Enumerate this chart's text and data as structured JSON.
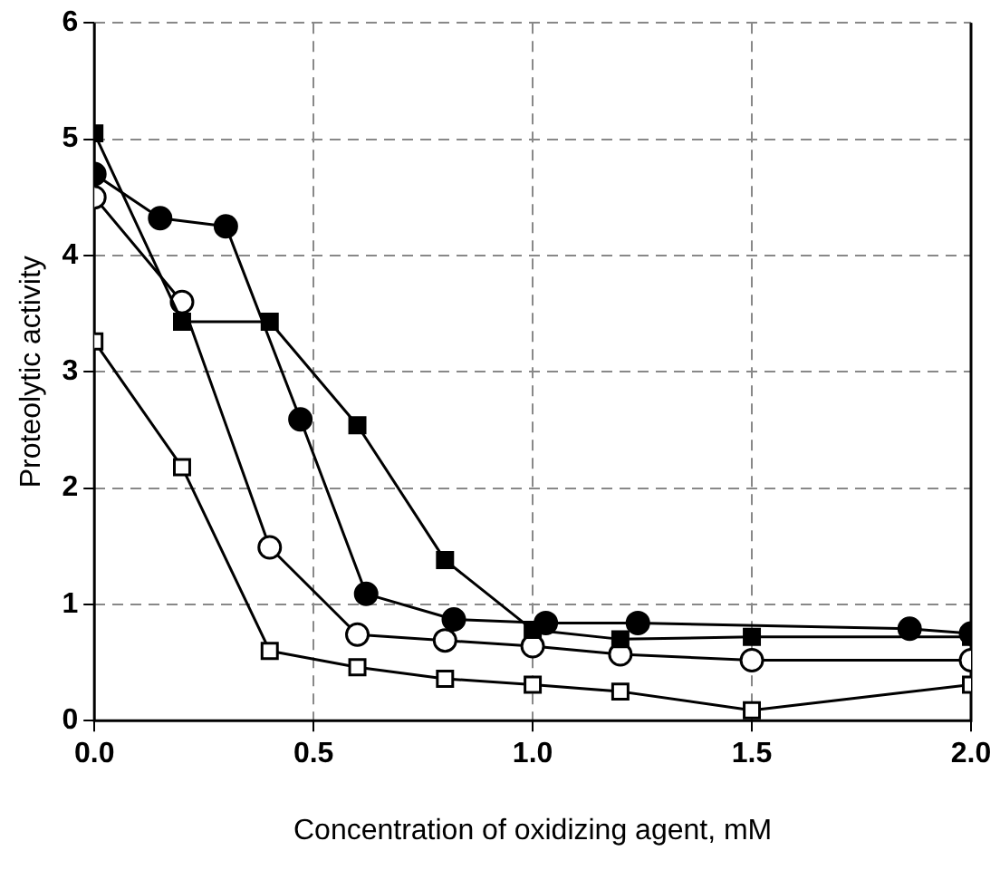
{
  "chart_data": {
    "type": "line",
    "xlabel": "Concentration of oxidizing agent, mM",
    "ylabel": "Proteolytic activity",
    "xlim": [
      0,
      2
    ],
    "xticks": [
      {
        "value": 0,
        "label": "0.0"
      },
      {
        "value": 0.5,
        "label": "0.5"
      },
      {
        "value": 1,
        "label": "1.0"
      },
      {
        "value": 1.5,
        "label": "1.5"
      },
      {
        "value": 2,
        "label": "2.0"
      }
    ],
    "ylim": [
      0,
      6
    ],
    "yticks": [
      0,
      1,
      2,
      3,
      4,
      5,
      6
    ],
    "grid": true,
    "line_style": "solid",
    "legend": false,
    "series": [
      {
        "color": "#000000",
        "marker": "circle",
        "x": [
          0,
          0.15,
          0.3,
          0.47,
          0.62,
          0.82,
          1.03,
          1.24,
          1.86,
          2.0
        ],
        "values": [
          4.7,
          4.32,
          4.25,
          2.59,
          1.09,
          0.87,
          0.84,
          0.84,
          0.79,
          0.75
        ]
      },
      {
        "color": "#000000",
        "marker": "square",
        "x": [
          0,
          0.2,
          0.4,
          0.6,
          0.8,
          1.0,
          1.2,
          1.5,
          2.0
        ],
        "values": [
          5.05,
          3.43,
          3.43,
          2.54,
          1.38,
          0.78,
          0.7,
          0.72,
          0.72
        ]
      },
      {
        "color": "#ffffff",
        "marker": "circle",
        "x": [
          0,
          0.2,
          0.4,
          0.6,
          0.8,
          1.0,
          1.2,
          1.5,
          2.0
        ],
        "values": [
          4.5,
          3.6,
          1.49,
          0.74,
          0.69,
          0.64,
          0.57,
          0.52,
          0.52
        ]
      },
      {
        "color": "#ffffff",
        "marker": "square",
        "x": [
          0,
          0.2,
          0.4,
          0.6,
          0.8,
          1.0,
          1.2,
          1.5,
          2.0
        ],
        "values": [
          3.26,
          2.18,
          0.6,
          0.46,
          0.36,
          0.31,
          0.25,
          0.09,
          0.31
        ]
      }
    ]
  }
}
